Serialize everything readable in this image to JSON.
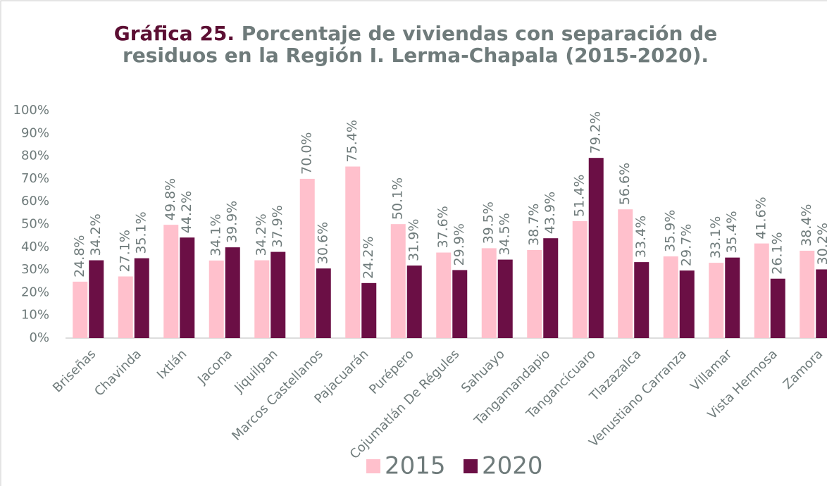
{
  "chart_data": {
    "type": "bar",
    "title_label": "Gráfica 25.",
    "title": "Porcentaje de viviendas con separación de residuos en la Región I. Lerma-Chapala (2015-2020).",
    "categories": [
      "Briseñas",
      "Chavinda",
      "Ixtlán",
      "Jacona",
      "Jiquilpan",
      "Marcos Castellanos",
      "Pajacuarán",
      "Purépero",
      "Cojumatlán De Régules",
      "Sahuayo",
      "Tangamandapio",
      "Tangancícuaro",
      "Tlazazalca",
      "Venustiano Carranza",
      "Villamar",
      "Vista Hermosa",
      "Zamora"
    ],
    "series": [
      {
        "name": "2015",
        "color": "#ffc0cc",
        "values": [
          24.8,
          27.1,
          49.8,
          34.1,
          34.2,
          70.0,
          75.4,
          50.1,
          37.6,
          39.5,
          38.7,
          51.4,
          56.6,
          35.9,
          33.1,
          41.6,
          38.4
        ],
        "value_labels": [
          "24.8%",
          "27.1%",
          "49.8%",
          "34.1%",
          "34.2%",
          "70.0%",
          "75.4%",
          "50.1%",
          "37.6%",
          "39.5%",
          "38.7%",
          "51.4%",
          "56.6%",
          "35.9%",
          "33.1%",
          "41.6%",
          "38.4%"
        ]
      },
      {
        "name": "2020",
        "color": "#6b0f45",
        "values": [
          34.2,
          35.1,
          44.2,
          39.9,
          37.9,
          30.6,
          24.2,
          31.9,
          29.9,
          34.5,
          43.9,
          79.2,
          33.4,
          29.7,
          35.4,
          26.1,
          30.2
        ],
        "value_labels": [
          "34.2%",
          "35.1%",
          "44.2%",
          "39.9%",
          "37.9%",
          "30.6%",
          "24.2%",
          "31.9%",
          "29.9%",
          "34.5%",
          "43.9%",
          "79.2%",
          "33.4%",
          "29.7%",
          "35.4%",
          "26.1%",
          "30.2%"
        ]
      }
    ],
    "ylim": [
      0,
      100
    ],
    "yticks": [
      {
        "value": 0,
        "label": "0%"
      },
      {
        "value": 10,
        "label": "10%"
      },
      {
        "value": 20,
        "label": "20%"
      },
      {
        "value": 30,
        "label": "30%"
      },
      {
        "value": 40,
        "label": "40%"
      },
      {
        "value": 50,
        "label": "50%"
      },
      {
        "value": 60,
        "label": "60%"
      },
      {
        "value": 70,
        "label": "70%"
      },
      {
        "value": 80,
        "label": "80%"
      },
      {
        "value": 90,
        "label": "90%"
      },
      {
        "value": 100,
        "label": "100%"
      }
    ],
    "grid": false,
    "legend": "bottom"
  }
}
